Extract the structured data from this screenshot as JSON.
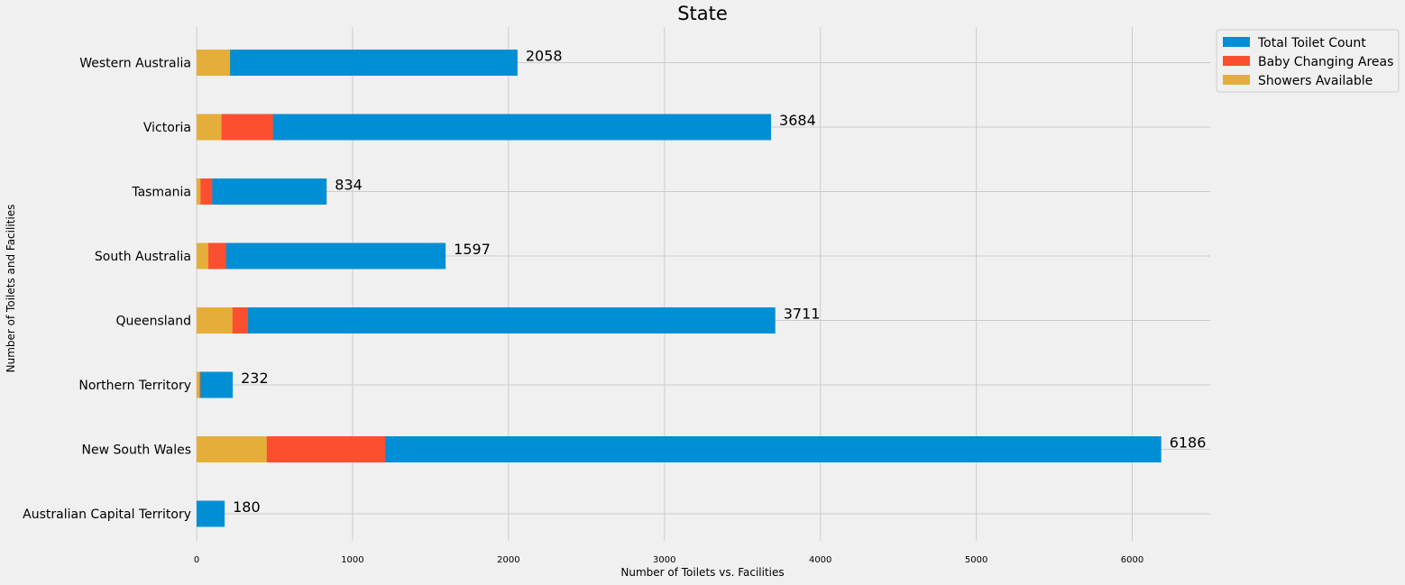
{
  "chart_data": {
    "type": "bar",
    "orientation": "horizontal",
    "title": "State",
    "xlabel": "Number of Toilets vs. Facilities",
    "ylabel": "Number of Toilets and Facilities",
    "categories": [
      "Australian Capital Territory",
      "New South Wales",
      "Northern Territory",
      "Queensland",
      "South Australia",
      "Tasmania",
      "Victoria",
      "Western Australia"
    ],
    "series": [
      {
        "name": "Total Toilet Count",
        "color": "#008fd5",
        "values": [
          180,
          6186,
          232,
          3711,
          1597,
          834,
          3684,
          2058
        ]
      },
      {
        "name": "Baby Changing Areas",
        "color": "#fc4f30",
        "values": [
          0,
          1210,
          25,
          330,
          190,
          100,
          490,
          0
        ]
      },
      {
        "name": "Showers Available",
        "color": "#e5ae38",
        "values": [
          0,
          450,
          20,
          230,
          75,
          25,
          160,
          215
        ]
      }
    ],
    "data_labels": [
      "180",
      "6186",
      "232",
      "3711",
      "1597",
      "834",
      "3684",
      "2058"
    ],
    "xlim": [
      0,
      6500
    ],
    "xticks": [
      0,
      1000,
      2000,
      3000,
      4000,
      5000,
      6000
    ],
    "xtick_labels": [
      "0",
      "1000",
      "2000",
      "3000",
      "4000",
      "5000",
      "6000"
    ],
    "grid": true,
    "legend_position": "top-right-outside"
  }
}
